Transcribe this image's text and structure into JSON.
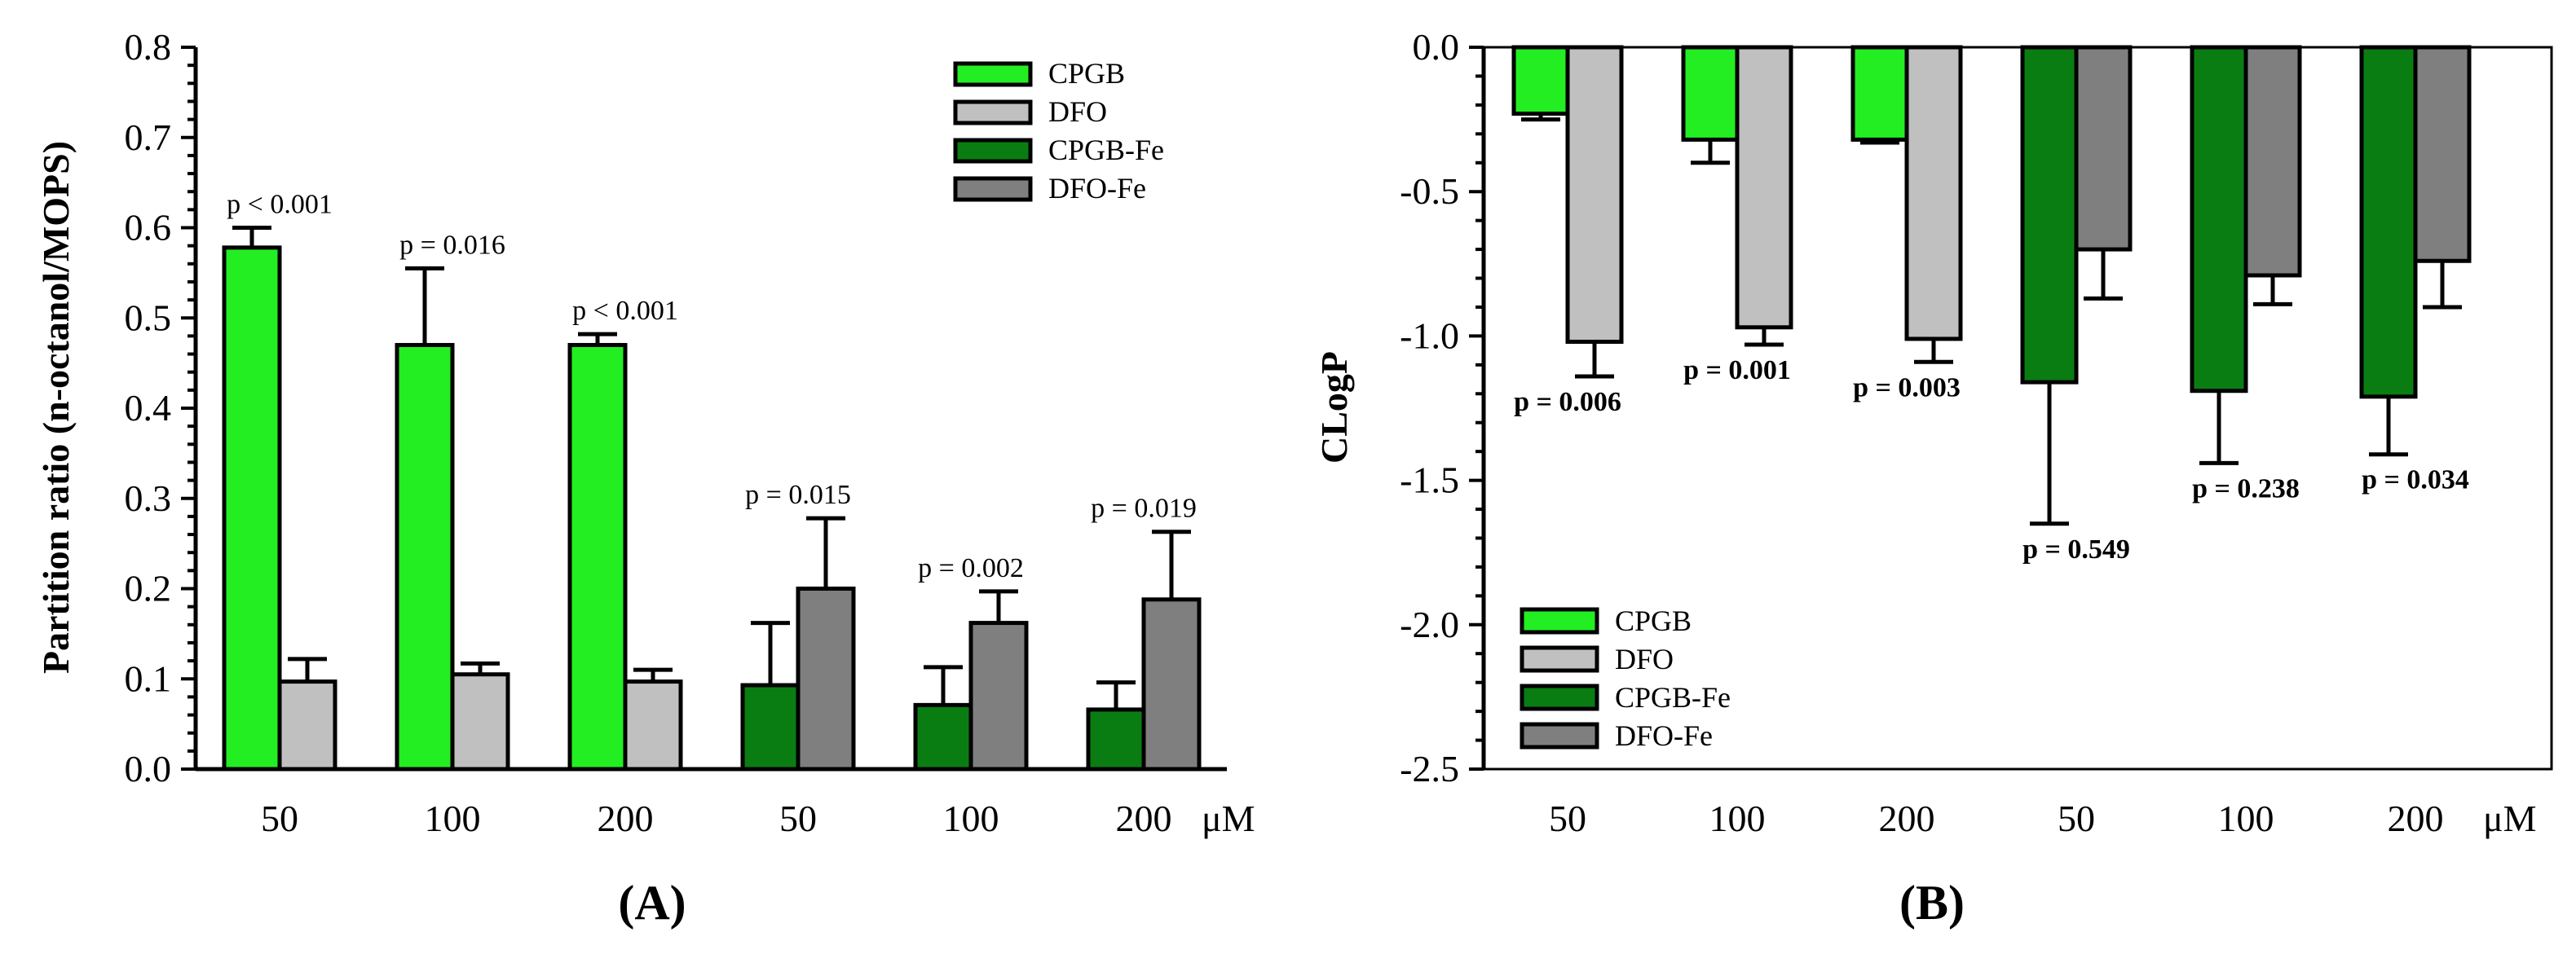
{
  "colors": {
    "CPGB": "#22ee22",
    "DFO": "#c0c0c0",
    "CPGB-Fe": "#0a7d12",
    "DFO-Fe": "#7f7f7f"
  },
  "chart_data": [
    {
      "type": "bar",
      "panel_label": "(A)",
      "ylabel": "Partition ratio (n-octanol/MOPS)",
      "xlabel": "",
      "unit_label": "μM",
      "ylim": [
        0,
        0.8
      ],
      "yticks": [
        "0.0",
        "0.1",
        "0.2",
        "0.3",
        "0.4",
        "0.5",
        "0.6",
        "0.7",
        "0.8"
      ],
      "categories": [
        "50",
        "100",
        "200",
        "50",
        "100",
        "200"
      ],
      "legend": [
        "CPGB",
        "DFO",
        "CPGB-Fe",
        "DFO-Fe"
      ],
      "legend_position": "top-right",
      "groups": [
        {
          "category": "50",
          "bars": [
            {
              "series": "CPGB",
              "value": 0.578,
              "err": 0.022
            },
            {
              "series": "DFO",
              "value": 0.097,
              "err": 0.025
            }
          ],
          "annotation": "p < 0.001"
        },
        {
          "category": "100",
          "bars": [
            {
              "series": "CPGB",
              "value": 0.47,
              "err": 0.085
            },
            {
              "series": "DFO",
              "value": 0.105,
              "err": 0.012
            }
          ],
          "annotation": "p = 0.016"
        },
        {
          "category": "200",
          "bars": [
            {
              "series": "CPGB",
              "value": 0.47,
              "err": 0.012
            },
            {
              "series": "DFO",
              "value": 0.097,
              "err": 0.013
            }
          ],
          "annotation": "p < 0.001"
        },
        {
          "category": "50",
          "bars": [
            {
              "series": "CPGB-Fe",
              "value": 0.093,
              "err": 0.069
            },
            {
              "series": "DFO-Fe",
              "value": 0.2,
              "err": 0.078
            }
          ],
          "annotation": "p = 0.015"
        },
        {
          "category": "100",
          "bars": [
            {
              "series": "CPGB-Fe",
              "value": 0.071,
              "err": 0.042
            },
            {
              "series": "DFO-Fe",
              "value": 0.162,
              "err": 0.035
            }
          ],
          "annotation": "p = 0.002"
        },
        {
          "category": "200",
          "bars": [
            {
              "series": "CPGB-Fe",
              "value": 0.066,
              "err": 0.03
            },
            {
              "series": "DFO-Fe",
              "value": 0.188,
              "err": 0.075
            }
          ],
          "annotation": "p = 0.019"
        }
      ]
    },
    {
      "type": "bar",
      "panel_label": "(B)",
      "ylabel": "CLogP",
      "xlabel": "",
      "unit_label": "μM",
      "ylim": [
        -2.5,
        0
      ],
      "yticks": [
        "0.0",
        "-0.5",
        "-1.0",
        "-1.5",
        "-2.0",
        "-2.5"
      ],
      "categories": [
        "50",
        "100",
        "200",
        "50",
        "100",
        "200"
      ],
      "legend": [
        "CPGB",
        "DFO",
        "CPGB-Fe",
        "DFO-Fe"
      ],
      "legend_position": "bottom-left",
      "groups": [
        {
          "category": "50",
          "bars": [
            {
              "series": "CPGB",
              "value": -0.23,
              "err": 0.02
            },
            {
              "series": "DFO",
              "value": -1.02,
              "err": 0.12
            }
          ],
          "annotation": "p = 0.006"
        },
        {
          "category": "100",
          "bars": [
            {
              "series": "CPGB",
              "value": -0.32,
              "err": 0.08
            },
            {
              "series": "DFO",
              "value": -0.97,
              "err": 0.06
            }
          ],
          "annotation": "p = 0.001"
        },
        {
          "category": "200",
          "bars": [
            {
              "series": "CPGB",
              "value": -0.32,
              "err": 0.01
            },
            {
              "series": "DFO",
              "value": -1.01,
              "err": 0.08
            }
          ],
          "annotation": "p = 0.003"
        },
        {
          "category": "50",
          "bars": [
            {
              "series": "CPGB-Fe",
              "value": -1.16,
              "err": 0.49
            },
            {
              "series": "DFO-Fe",
              "value": -0.7,
              "err": 0.17
            }
          ],
          "annotation": "p = 0.549"
        },
        {
          "category": "100",
          "bars": [
            {
              "series": "CPGB-Fe",
              "value": -1.19,
              "err": 0.25
            },
            {
              "series": "DFO-Fe",
              "value": -0.79,
              "err": 0.1
            }
          ],
          "annotation": "p = 0.238"
        },
        {
          "category": "200",
          "bars": [
            {
              "series": "CPGB-Fe",
              "value": -1.21,
              "err": 0.2
            },
            {
              "series": "DFO-Fe",
              "value": -0.74,
              "err": 0.16
            }
          ],
          "annotation": "p = 0.034"
        }
      ]
    }
  ]
}
